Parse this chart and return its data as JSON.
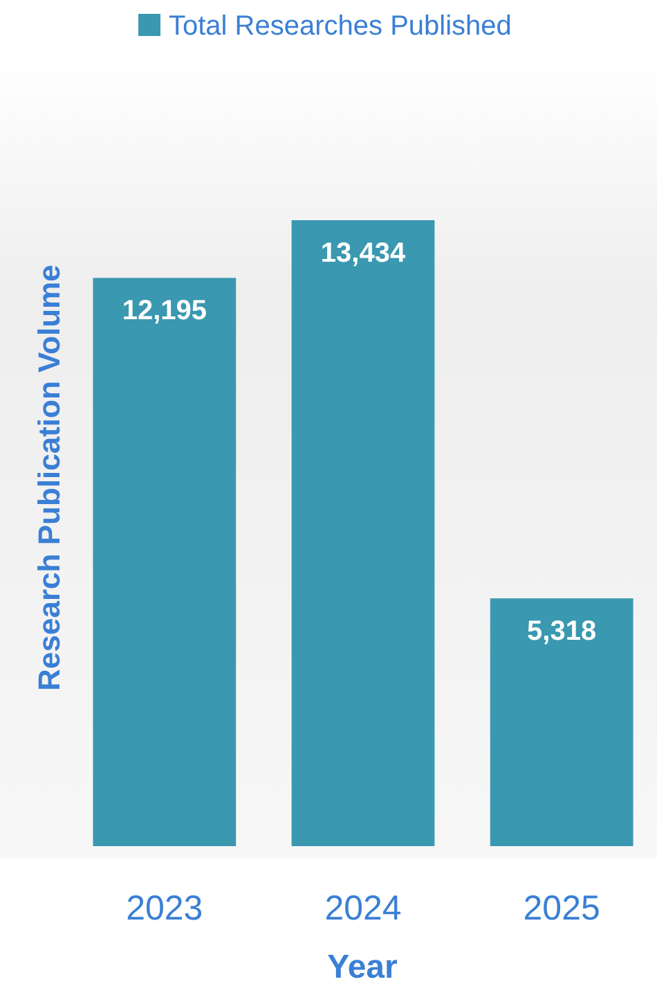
{
  "chart_data": {
    "type": "bar",
    "xlabel": "Year",
    "ylabel": "Research Publication Volume",
    "categories": [
      "2023",
      "2024",
      "2025"
    ],
    "series": [
      {
        "name": "Total Researches Published",
        "color": "#3a98b0",
        "values": [
          12195,
          13434,
          5318
        ],
        "value_labels": [
          "12,195",
          "13,434",
          "5,318"
        ]
      }
    ],
    "legend": "top",
    "grid": false
  }
}
